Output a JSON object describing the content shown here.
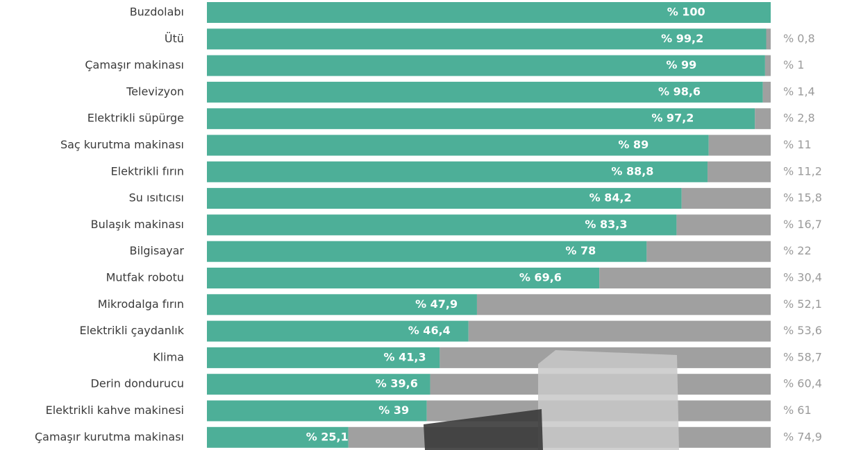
{
  "chart_data": {
    "type": "stacked-bar",
    "categories": [
      "Buzdolabı",
      "Ütü",
      "Çamaşır makinası",
      "Televizyon",
      "Elektrikli süpürge",
      "Saç kurutma makinası",
      "Elektrikli fırın",
      "Su ısıtıcısı",
      "Bulaşık makinası",
      "Bilgisayar",
      "Mutfak robotu",
      "Mikrodalga fırın",
      "Elektrikli çaydanlık",
      "Klima",
      "Derin dondurucu",
      "Elektrikli kahve makinesi",
      "Çamaşır kurutma makinası"
    ],
    "series": [
      {
        "color": "#4daf98",
        "values": [
          100,
          99.2,
          99,
          98.6,
          97.2,
          89,
          88.8,
          84.2,
          83.3,
          78,
          69.6,
          47.9,
          46.4,
          41.3,
          39.6,
          39,
          25.1
        ],
        "value_labels": [
          "% 100",
          "% 99,2",
          "% 99",
          "% 98,6",
          "% 97,2",
          "% 89",
          "% 88,8",
          "% 84,2",
          "% 83,3",
          "% 78",
          "% 69,6",
          "% 47,9",
          "% 46,4",
          "% 41,3",
          "% 39,6",
          "% 39",
          "% 25,1"
        ]
      },
      {
        "color": "#a0a0a0",
        "values": [
          0,
          0.8,
          1,
          1.4,
          2.8,
          11,
          11.2,
          15.8,
          16.7,
          22,
          30.4,
          52.1,
          53.6,
          58.7,
          60.4,
          61,
          74.9
        ],
        "value_labels": [
          null,
          "% 0,8",
          "% 1",
          "% 1,4",
          "% 2,8",
          "% 11",
          "% 11,2",
          "% 15,8",
          "% 16,7",
          "% 22",
          "% 30,4",
          "% 52,1",
          "% 53,6",
          "% 58,7",
          "% 60,4",
          "% 61",
          "% 74,9"
        ]
      }
    ]
  }
}
